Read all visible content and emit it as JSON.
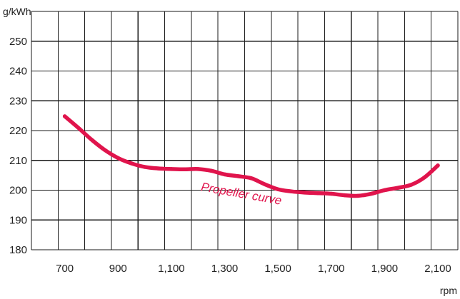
{
  "chart_data": {
    "type": "line",
    "title": "",
    "xlabel": "rpm",
    "ylabel": "g/kWh",
    "xlim": [
      575,
      2175
    ],
    "ylim": [
      180,
      260
    ],
    "x_ticks": [
      {
        "value": 700,
        "label": "700"
      },
      {
        "value": 900,
        "label": "900"
      },
      {
        "value": 1100,
        "label": "1,100"
      },
      {
        "value": 1300,
        "label": "1,300"
      },
      {
        "value": 1500,
        "label": "1,500"
      },
      {
        "value": 1700,
        "label": "1,700"
      },
      {
        "value": 1900,
        "label": "1,900"
      },
      {
        "value": 2100,
        "label": "2,100"
      }
    ],
    "y_ticks": [
      {
        "value": 180,
        "label": "180"
      },
      {
        "value": 190,
        "label": "190"
      },
      {
        "value": 200,
        "label": "200"
      },
      {
        "value": 210,
        "label": "210"
      },
      {
        "value": 220,
        "label": "220"
      },
      {
        "value": 230,
        "label": "230"
      },
      {
        "value": 240,
        "label": "240"
      },
      {
        "value": 250,
        "label": "250"
      }
    ],
    "x_gridlines": [
      575,
      675,
      775,
      875,
      975,
      1075,
      1175,
      1275,
      1375,
      1475,
      1575,
      1675,
      1775,
      1875,
      1975,
      2075,
      2175
    ],
    "y_gridlines": [
      180,
      190,
      200,
      210,
      220,
      230,
      240,
      250,
      260
    ],
    "grid": true,
    "legend": "none",
    "series": [
      {
        "color": "#e0144c",
        "x": [
          700,
          750,
          800,
          850,
          900,
          950,
          1000,
          1050,
          1100,
          1150,
          1200,
          1250,
          1300,
          1350,
          1400,
          1450,
          1500,
          1550,
          1600,
          1650,
          1700,
          1750,
          1800,
          1850,
          1900,
          1950,
          2000,
          2050,
          2100
        ],
        "y": [
          224.8,
          221,
          217,
          213.5,
          210.8,
          209,
          207.8,
          207.3,
          207.1,
          207,
          207.1,
          206.5,
          205.3,
          204.7,
          204,
          202,
          200.3,
          199.6,
          199.2,
          199,
          198.8,
          198.3,
          198.1,
          198.8,
          200,
          200.8,
          201.8,
          204.3,
          208.3
        ]
      }
    ],
    "annotations": [
      {
        "text": "Propeller curve",
        "x": 1360,
        "y": 197.5,
        "color": "#e0144c",
        "rotation": 10
      }
    ]
  }
}
